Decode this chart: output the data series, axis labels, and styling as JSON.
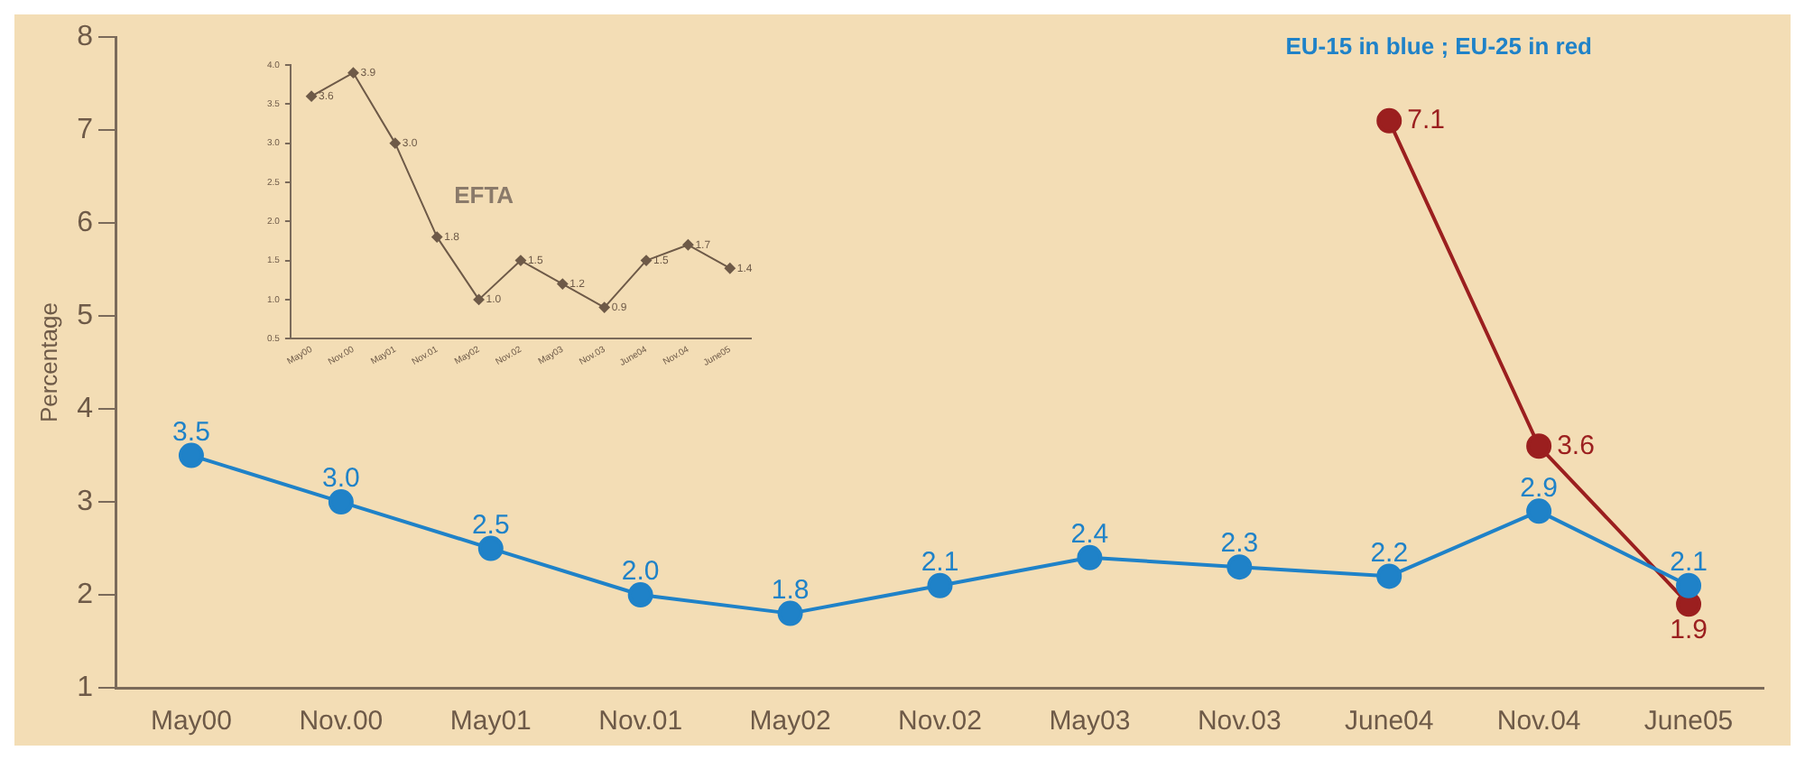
{
  "chart_data": [
    {
      "type": "line",
      "ylabel": "Percentage",
      "categories": [
        "May00",
        "Nov.00",
        "May01",
        "Nov.01",
        "May02",
        "Nov.02",
        "May03",
        "Nov.03",
        "June04",
        "Nov.04",
        "June05"
      ],
      "series": [
        {
          "color": "#1f82c8",
          "values": [
            3.5,
            3.0,
            2.5,
            2.0,
            1.8,
            2.1,
            2.4,
            2.3,
            2.2,
            2.9,
            2.1
          ],
          "value_labels": [
            "3.5",
            "3.0",
            "2.5",
            "2.0",
            "1.8",
            "2.1",
            "2.4",
            "2.3",
            "2.2",
            "2.9",
            "2.1"
          ]
        },
        {
          "color": "#9b1f1f",
          "values": [
            null,
            null,
            null,
            null,
            null,
            null,
            null,
            null,
            7.1,
            3.6,
            1.9
          ],
          "value_labels": [
            null,
            null,
            null,
            null,
            null,
            null,
            null,
            null,
            "7.1",
            "3.6",
            "1.9"
          ]
        }
      ],
      "ylim": [
        1,
        8
      ],
      "yticks": [
        1,
        2,
        3,
        4,
        5,
        6,
        7,
        8
      ],
      "grid": false,
      "legend": false,
      "marker": "circle",
      "annotations": [
        "EU-15 in blue ; EU-25 in red"
      ]
    },
    {
      "type": "line",
      "title": "EFTA",
      "categories": [
        "May00",
        "Nov.00",
        "May01",
        "Nov.01",
        "May02",
        "Nov.02",
        "May03",
        "Nov.03",
        "June04",
        "Nov.04",
        "June05"
      ],
      "series": [
        {
          "color": "#6e5a48",
          "values": [
            3.6,
            3.9,
            3.0,
            1.8,
            1.0,
            1.5,
            1.2,
            0.9,
            1.5,
            1.7,
            1.4
          ],
          "value_labels": [
            "3.6",
            "3.9",
            "3.0",
            "1.8",
            "1.0",
            "1.5",
            "1.2",
            "0.9",
            "1.5",
            "1.7",
            "1.4"
          ]
        }
      ],
      "ylim": [
        0.5,
        4.0
      ],
      "yticks": [
        {
          "value": 0.5,
          "label": "0.5"
        },
        {
          "value": 1.0,
          "label": "1.0"
        },
        {
          "value": 1.5,
          "label": "1.5"
        },
        {
          "value": 2.0,
          "label": "2.0"
        },
        {
          "value": 2.5,
          "label": "2.5"
        },
        {
          "value": 3.0,
          "label": "3.0"
        },
        {
          "value": 3.5,
          "label": "3.5"
        },
        {
          "value": 4.0,
          "label": "4.0"
        }
      ],
      "grid": false,
      "legend": false,
      "marker": "diamond"
    }
  ]
}
